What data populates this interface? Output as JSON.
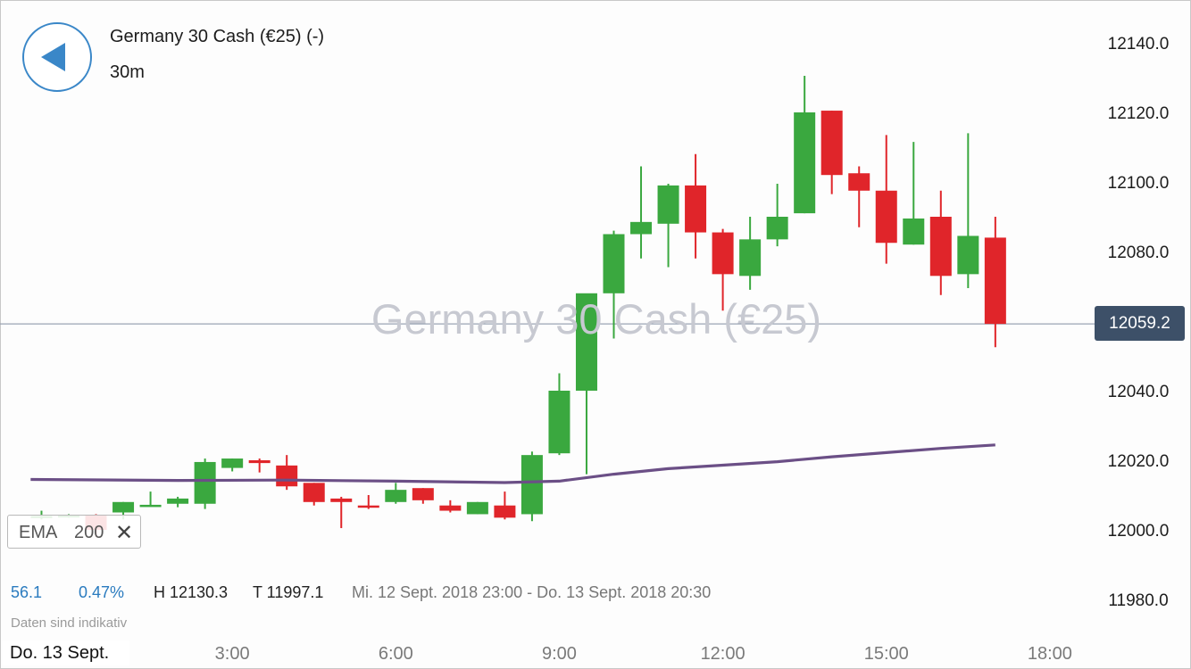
{
  "header": {
    "instrument_title": "Germany 30 Cash (€25) (-)",
    "interval": "30m",
    "watermark": "Germany 30 Cash (€25)"
  },
  "indicator": {
    "name": "EMA",
    "period": "200",
    "remove_glyph": "✕"
  },
  "stats": {
    "change_points": "56.1",
    "change_percent": "0.47%",
    "high": "H 12130.3",
    "low": "T 11997.1",
    "range": "Mi. 12 Sept. 2018 23:00 - Do. 13 Sept. 2018 20:30"
  },
  "disclaimer": "Daten sind indikativ",
  "current_date_label": "Do. 13 Sept.",
  "current_price_label": "12059.2",
  "colors": {
    "up": "#3aa83f",
    "down": "#e0252a",
    "ema": "#6b4f86",
    "price_line": "#9aa3b3",
    "accent": "#3a87c8",
    "price_tag": "#3d5068"
  },
  "icons": {
    "back": "back-arrow-icon",
    "remove": "close-icon"
  },
  "chart_data": {
    "type": "candlestick",
    "ylim": [
      11980,
      12140
    ],
    "yticks": [
      "12140.0",
      "12120.0",
      "12100.0",
      "12080.0",
      "12060.0",
      "12040.0",
      "12020.0",
      "12000.0",
      "11980.0"
    ],
    "xticks": [
      {
        "label": "3:00",
        "hour": 3
      },
      {
        "label": "6:00",
        "hour": 6
      },
      {
        "label": "9:00",
        "hour": 9
      },
      {
        "label": "12:00",
        "hour": 12
      },
      {
        "label": "15:00",
        "hour": 15
      },
      {
        "label": "18:00",
        "hour": 18
      }
    ],
    "current_price": 12059.2,
    "candles": [
      {
        "t": -0.5,
        "o": 12003.5,
        "h": 12005.5,
        "l": 12003.0,
        "c": 12004.0
      },
      {
        "t": 0.0,
        "o": 12004.0,
        "h": 12004.5,
        "l": 12003.5,
        "c": 12004.2
      },
      {
        "t": 0.5,
        "o": 12004.2,
        "h": 12004.5,
        "l": 11998.0,
        "c": 12000.0
      },
      {
        "t": 1.0,
        "o": 12005.0,
        "h": 12008.0,
        "l": 12003.0,
        "c": 12008.0
      },
      {
        "t": 1.5,
        "o": 12007.0,
        "h": 12011.0,
        "l": 12007.0,
        "c": 12007.2
      },
      {
        "t": 2.0,
        "o": 12007.5,
        "h": 12009.5,
        "l": 12006.5,
        "c": 12009.0
      },
      {
        "t": 2.5,
        "o": 12007.5,
        "h": 12020.5,
        "l": 12006.0,
        "c": 12019.5
      },
      {
        "t": 3.0,
        "o": 12017.8,
        "h": 12020.5,
        "l": 12016.8,
        "c": 12020.5
      },
      {
        "t": 3.5,
        "o": 12020.0,
        "h": 12020.5,
        "l": 12016.5,
        "c": 12019.2
      },
      {
        "t": 4.0,
        "o": 12018.5,
        "h": 12021.5,
        "l": 12011.5,
        "c": 12012.5
      },
      {
        "t": 4.5,
        "o": 12013.5,
        "h": 12013.5,
        "l": 12007.0,
        "c": 12008.0
      },
      {
        "t": 5.0,
        "o": 12009.0,
        "h": 12009.5,
        "l": 12000.5,
        "c": 12008.0
      },
      {
        "t": 5.5,
        "o": 12007.0,
        "h": 12010.0,
        "l": 12006.0,
        "c": 12006.5
      },
      {
        "t": 6.0,
        "o": 12008.0,
        "h": 12013.5,
        "l": 12007.5,
        "c": 12011.5
      },
      {
        "t": 6.5,
        "o": 12012.0,
        "h": 12012.0,
        "l": 12007.5,
        "c": 12008.5
      },
      {
        "t": 7.0,
        "o": 12007.0,
        "h": 12008.5,
        "l": 12005.0,
        "c": 12005.5
      },
      {
        "t": 7.5,
        "o": 12004.5,
        "h": 12008.0,
        "l": 12004.5,
        "c": 12008.0
      },
      {
        "t": 8.0,
        "o": 12007.0,
        "h": 12011.0,
        "l": 12003.0,
        "c": 12003.5
      },
      {
        "t": 8.5,
        "o": 12004.5,
        "h": 12022.5,
        "l": 12002.5,
        "c": 12021.5
      },
      {
        "t": 9.0,
        "o": 12022.0,
        "h": 12045.0,
        "l": 12021.5,
        "c": 12040.0
      },
      {
        "t": 9.5,
        "o": 12040.0,
        "h": 12067.5,
        "l": 12016.0,
        "c": 12068.0
      },
      {
        "t": 10.0,
        "o": 12068.0,
        "h": 12086.0,
        "l": 12055.0,
        "c": 12085.0
      },
      {
        "t": 10.5,
        "o": 12085.0,
        "h": 12104.5,
        "l": 12078.0,
        "c": 12088.5
      },
      {
        "t": 11.0,
        "o": 12088.0,
        "h": 12099.5,
        "l": 12075.5,
        "c": 12099.0
      },
      {
        "t": 11.5,
        "o": 12099.0,
        "h": 12108.0,
        "l": 12078.0,
        "c": 12085.5
      },
      {
        "t": 12.0,
        "o": 12085.5,
        "h": 12086.5,
        "l": 12063.0,
        "c": 12073.5
      },
      {
        "t": 12.5,
        "o": 12073.0,
        "h": 12090.0,
        "l": 12069.0,
        "c": 12083.5
      },
      {
        "t": 13.0,
        "o": 12083.5,
        "h": 12099.5,
        "l": 12081.5,
        "c": 12090.0
      },
      {
        "t": 13.5,
        "o": 12091.0,
        "h": 12130.5,
        "l": 12091.0,
        "c": 12120.0
      },
      {
        "t": 14.0,
        "o": 12120.5,
        "h": 12120.5,
        "l": 12096.5,
        "c": 12102.0
      },
      {
        "t": 14.5,
        "o": 12102.5,
        "h": 12104.5,
        "l": 12087.0,
        "c": 12097.5
      },
      {
        "t": 15.0,
        "o": 12097.5,
        "h": 12113.5,
        "l": 12076.5,
        "c": 12082.5
      },
      {
        "t": 15.5,
        "o": 12082.0,
        "h": 12111.5,
        "l": 12082.0,
        "c": 12089.5
      },
      {
        "t": 16.0,
        "o": 12090.0,
        "h": 12097.5,
        "l": 12067.5,
        "c": 12073.0
      },
      {
        "t": 16.5,
        "o": 12073.5,
        "h": 12114.0,
        "l": 12069.5,
        "c": 12084.5
      },
      {
        "t": 17.0,
        "o": 12084.0,
        "h": 12090.0,
        "l": 12052.5,
        "c": 12059.2
      }
    ],
    "ema": [
      {
        "t": -0.7,
        "v": 12014.5
      },
      {
        "t": 2.0,
        "v": 12014.2
      },
      {
        "t": 4.0,
        "v": 12014.3
      },
      {
        "t": 6.0,
        "v": 12014.0
      },
      {
        "t": 8.0,
        "v": 12013.6
      },
      {
        "t": 9.0,
        "v": 12014.0
      },
      {
        "t": 10.0,
        "v": 12016.0
      },
      {
        "t": 11.0,
        "v": 12017.6
      },
      {
        "t": 12.0,
        "v": 12018.6
      },
      {
        "t": 13.0,
        "v": 12019.6
      },
      {
        "t": 14.0,
        "v": 12021.0
      },
      {
        "t": 15.0,
        "v": 12022.2
      },
      {
        "t": 16.0,
        "v": 12023.4
      },
      {
        "t": 17.0,
        "v": 12024.4
      }
    ]
  }
}
